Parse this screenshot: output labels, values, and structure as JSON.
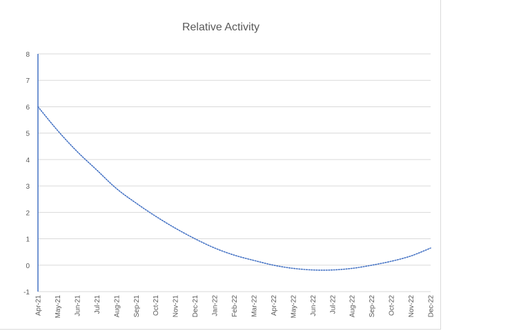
{
  "chart_data": {
    "type": "line",
    "title": "Relative Activity",
    "xlabel": "",
    "ylabel": "",
    "ylim": [
      -1,
      8
    ],
    "yticks": [
      "-1",
      "0",
      "1",
      "2",
      "3",
      "4",
      "5",
      "6",
      "7",
      "8"
    ],
    "grid": true,
    "legend": "none",
    "categories": [
      "Apr-21",
      "May-21",
      "Jun-21",
      "Jul-21",
      "Aug-21",
      "Sep-21",
      "Oct-21",
      "Nov-21",
      "Dec-21",
      "Jan-22",
      "Feb-22",
      "Mar-22",
      "Apr-22",
      "May-22",
      "Jun-22",
      "Jul-22",
      "Aug-22",
      "Sep-22",
      "Oct-22",
      "Nov-22",
      "Dec-22"
    ],
    "series": [
      {
        "values": [
          6.0,
          5.1,
          4.3,
          3.6,
          2.9,
          2.35,
          1.85,
          1.4,
          1.0,
          0.65,
          0.38,
          0.18,
          0.0,
          -0.12,
          -0.18,
          -0.18,
          -0.12,
          0.0,
          0.15,
          0.35,
          0.65
        ],
        "color": "#4472c4",
        "style": "dotted"
      }
    ],
    "colors": {
      "axis": "#4472c4",
      "grid": "#d9d9d9",
      "text": "#595959"
    }
  }
}
